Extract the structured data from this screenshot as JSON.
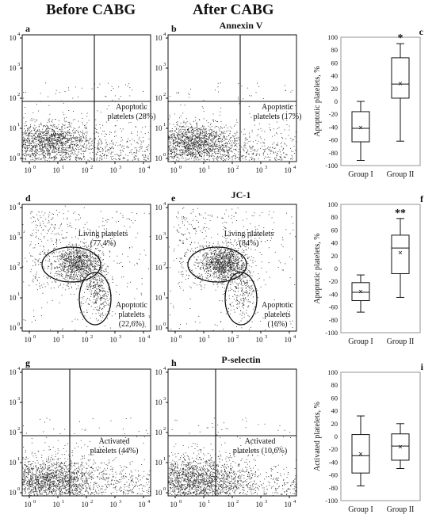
{
  "column_headers": [
    "Before CABG",
    "After CABG"
  ],
  "row_titles": [
    "Annexin V",
    "JC-1",
    "P-selectin"
  ],
  "scatter_axis": {
    "x_ticks": [
      "10",
      "10",
      "10",
      "10",
      "10"
    ],
    "x_exponents": [
      "0",
      "1",
      "2",
      "3",
      "4"
    ],
    "y_ticks": [
      "10",
      "10",
      "10",
      "10",
      "10"
    ],
    "y_exponents": [
      "0",
      "1",
      "2",
      "3",
      "4"
    ]
  },
  "scatter_panels": [
    {
      "letter": "a",
      "row": 0,
      "col": 0,
      "type": "quadrant",
      "gate": "Annexin V",
      "labels": [
        "Apoptotic",
        "platelets (28%)"
      ],
      "cloud": "low",
      "seed": 11
    },
    {
      "letter": "b",
      "row": 0,
      "col": 1,
      "type": "quadrant",
      "gate": "Annexin V",
      "labels": [
        "Apoptotic",
        "platelets (17%)"
      ],
      "cloud": "low",
      "seed": 23
    },
    {
      "letter": "d",
      "row": 1,
      "col": 0,
      "type": "ellipse",
      "gate": "JC-1",
      "labels_top": [
        "Living platelets",
        "(77,4%)"
      ],
      "labels_bottom": [
        "Apoptotic",
        "platelets",
        "(22,6%)"
      ],
      "living_pct": 77.4,
      "apoptotic_pct": 22.6,
      "seed": 37
    },
    {
      "letter": "e",
      "row": 1,
      "col": 1,
      "type": "ellipse",
      "gate": "JC-1",
      "labels_top": [
        "Living platelets",
        "(84%)"
      ],
      "labels_bottom": [
        "Apoptotic",
        "platelets",
        "(16%)"
      ],
      "living_pct": 84,
      "apoptotic_pct": 16,
      "seed": 41
    },
    {
      "letter": "g",
      "row": 2,
      "col": 0,
      "type": "quadrant",
      "gate": "P-selectin",
      "labels": [
        "Activated",
        "platelets (44%)"
      ],
      "cloud": "wide",
      "seed": 53
    },
    {
      "letter": "h",
      "row": 2,
      "col": 1,
      "type": "quadrant",
      "gate": "P-selectin",
      "labels": [
        "Activated",
        "platelets (10,6%)"
      ],
      "cloud": "wide",
      "seed": 67
    }
  ],
  "chart_data": [
    {
      "letter": "c",
      "type": "box",
      "ylabel": "Apoptotic platelets, %",
      "ylim": [
        -100,
        100
      ],
      "yticks": [
        -100,
        -80,
        -60,
        -40,
        -20,
        0,
        20,
        40,
        60,
        80,
        100
      ],
      "categories": [
        "Group I",
        "Group II"
      ],
      "boxes": [
        {
          "name": "Group I",
          "min": -92,
          "q1": -63,
          "median": -42,
          "q3": -16,
          "max": 0,
          "mean": -41
        },
        {
          "name": "Group II",
          "min": -62,
          "q1": 5,
          "median": 27,
          "q3": 68,
          "max": 90,
          "mean": 28
        }
      ],
      "annotations": [
        {
          "category": "Group II",
          "text": "*"
        }
      ]
    },
    {
      "letter": "f",
      "type": "box",
      "ylabel": "Apoptotic platelets, %",
      "ylim": [
        -100,
        100
      ],
      "yticks": [
        -100,
        -80,
        -60,
        -40,
        -20,
        0,
        20,
        40,
        60,
        80,
        100
      ],
      "categories": [
        "Group I",
        "Group II"
      ],
      "boxes": [
        {
          "name": "Group I",
          "min": -68,
          "q1": -50,
          "median": -37,
          "q3": -22,
          "max": -10,
          "mean": -36
        },
        {
          "name": "Group II",
          "min": -45,
          "q1": -8,
          "median": 32,
          "q3": 52,
          "max": 78,
          "mean": 25
        }
      ],
      "annotations": [
        {
          "category": "Group II",
          "text": "**"
        }
      ]
    },
    {
      "letter": "i",
      "type": "box",
      "ylabel": "Activated platelets, %",
      "ylim": [
        -100,
        100
      ],
      "yticks": [
        -100,
        -80,
        -60,
        -40,
        -20,
        0,
        20,
        40,
        60,
        80,
        100
      ],
      "categories": [
        "Group I",
        "Group II"
      ],
      "boxes": [
        {
          "name": "Group I",
          "min": -77,
          "q1": -57,
          "median": -30,
          "q3": 3,
          "max": 32,
          "mean": -27
        },
        {
          "name": "Group II",
          "min": -50,
          "q1": -37,
          "median": -15,
          "q3": 4,
          "max": 20,
          "mean": -16
        }
      ],
      "annotations": []
    }
  ]
}
